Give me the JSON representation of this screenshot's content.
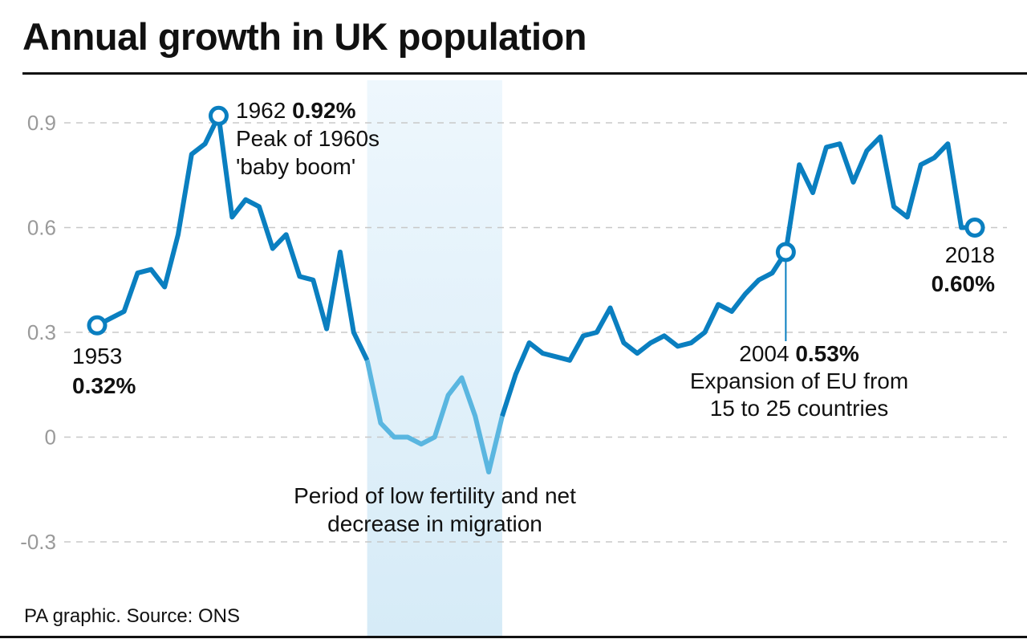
{
  "chart_data": {
    "type": "line",
    "title": "Annual growth in UK population",
    "source": "PA graphic. Source: ONS",
    "xlabel": "",
    "ylabel": "",
    "xlim": [
      1953,
      2018
    ],
    "ylim": [
      -0.3,
      0.9
    ],
    "y_ticks": [
      0.9,
      0.6,
      0.3,
      0,
      -0.3
    ],
    "y_tick_labels": [
      "0.9",
      "0.6",
      "0.3",
      "0",
      "-0.3"
    ],
    "grid": "horizontal dashed",
    "colors": {
      "line": "#0a7fc0",
      "highlight_line": "#5ab6e0",
      "band": "#d6ebf7"
    },
    "x": [
      1953,
      1954,
      1955,
      1956,
      1957,
      1958,
      1959,
      1960,
      1961,
      1962,
      1963,
      1964,
      1965,
      1966,
      1967,
      1968,
      1969,
      1970,
      1971,
      1972,
      1973,
      1974,
      1975,
      1976,
      1977,
      1978,
      1979,
      1980,
      1981,
      1982,
      1983,
      1984,
      1985,
      1986,
      1987,
      1988,
      1989,
      1990,
      1991,
      1992,
      1993,
      1994,
      1995,
      1996,
      1997,
      1998,
      1999,
      2000,
      2001,
      2002,
      2003,
      2004,
      2005,
      2006,
      2007,
      2008,
      2009,
      2010,
      2011,
      2012,
      2013,
      2014,
      2015,
      2016,
      2017,
      2018
    ],
    "values": [
      0.32,
      0.34,
      0.36,
      0.47,
      0.48,
      0.43,
      0.58,
      0.81,
      0.84,
      0.92,
      0.63,
      0.68,
      0.66,
      0.54,
      0.58,
      0.46,
      0.45,
      0.31,
      0.53,
      0.3,
      0.22,
      0.04,
      0.0,
      0.0,
      -0.02,
      0.0,
      0.12,
      0.17,
      0.06,
      -0.1,
      0.06,
      0.18,
      0.27,
      0.24,
      0.23,
      0.22,
      0.29,
      0.3,
      0.37,
      0.27,
      0.24,
      0.27,
      0.29,
      0.26,
      0.27,
      0.3,
      0.38,
      0.36,
      0.41,
      0.45,
      0.47,
      0.53,
      0.78,
      0.7,
      0.83,
      0.84,
      0.73,
      0.82,
      0.86,
      0.66,
      0.63,
      0.78,
      0.8,
      0.84,
      0.6,
      0.6
    ],
    "highlight_period": [
      1973,
      1983
    ],
    "annotations": {
      "start": {
        "year": "1953",
        "value": "0.32%"
      },
      "peak": {
        "year": "1962",
        "value": "0.92%",
        "line1": "Peak of 1960s",
        "line2": "'baby boom'"
      },
      "eu": {
        "year": "2004",
        "value": "0.53%",
        "line1": "Expansion of EU from",
        "line2": "15 to 25 countries"
      },
      "end": {
        "year": "2018",
        "value": "0.60%"
      },
      "period": {
        "line1": "Period of low fertility and net",
        "line2": "decrease in migration"
      }
    }
  }
}
